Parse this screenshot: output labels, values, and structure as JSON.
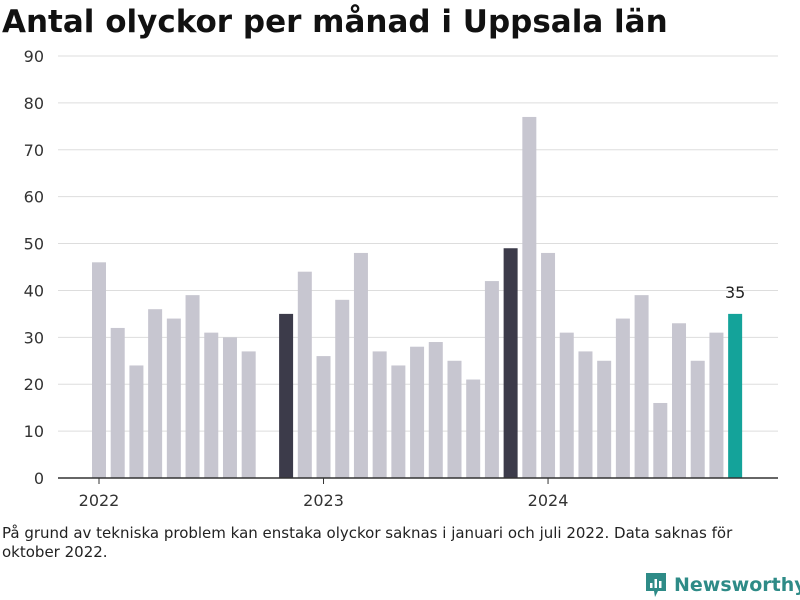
{
  "chart_data": {
    "type": "bar",
    "title": "Antal olyckor per månad i Uppsala län",
    "xlabel": "",
    "ylabel": "",
    "ylim": [
      0,
      90
    ],
    "yticks": [
      0,
      10,
      20,
      30,
      40,
      50,
      60,
      70,
      80,
      90
    ],
    "xtick_labels": [
      "2022",
      "2023",
      "2024"
    ],
    "grid": true,
    "categories": [
      "2022-01",
      "2022-02",
      "2022-03",
      "2022-04",
      "2022-05",
      "2022-06",
      "2022-07",
      "2022-08",
      "2022-09",
      "2022-10",
      "2022-11",
      "2022-12",
      "2023-01",
      "2023-02",
      "2023-03",
      "2023-04",
      "2023-05",
      "2023-06",
      "2023-07",
      "2023-08",
      "2023-09",
      "2023-10",
      "2023-11",
      "2023-12",
      "2024-01",
      "2024-02",
      "2024-03",
      "2024-04",
      "2024-05",
      "2024-06",
      "2024-07",
      "2024-08",
      "2024-09",
      "2024-10",
      "2024-11"
    ],
    "values": [
      46,
      32,
      24,
      36,
      34,
      39,
      31,
      30,
      27,
      null,
      35,
      44,
      26,
      38,
      48,
      27,
      24,
      28,
      29,
      25,
      21,
      42,
      49,
      77,
      48,
      31,
      27,
      25,
      34,
      39,
      16,
      33,
      25,
      31,
      35
    ],
    "highlight": {
      "2022-11": "dark",
      "2023-11": "dark",
      "2024-11": "accent"
    },
    "data_labels": [
      {
        "category": "2024-11",
        "text": "35"
      }
    ],
    "colors": {
      "bar": "#c7c6d0",
      "dark": "#3c3b4a",
      "accent": "#14a39a",
      "grid": "#dddddd",
      "axis": "#333333"
    }
  },
  "footnote": "På grund av tekniska problem kan enstaka olyckor saknas i januari och juli 2022. Data saknas för oktober 2022.",
  "brand": {
    "name": "Newsworthy",
    "icon": "newsworthy-logo-icon"
  }
}
